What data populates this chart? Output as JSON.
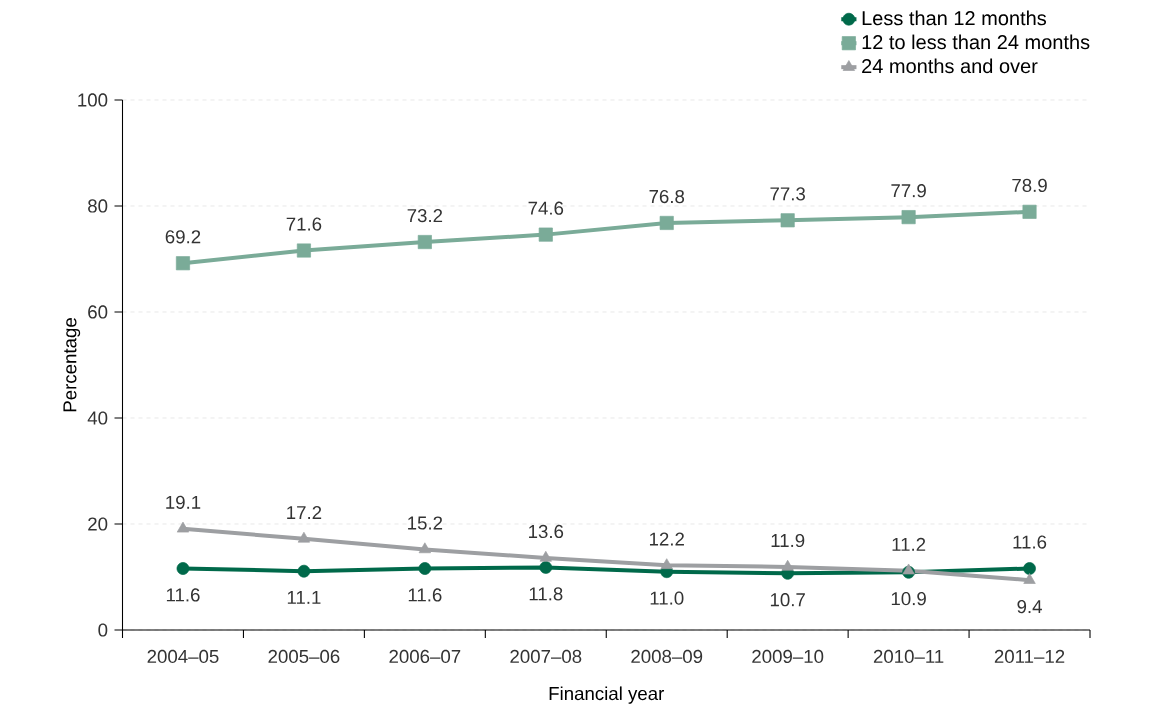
{
  "chart_data": {
    "type": "line",
    "xlabel": "Financial year",
    "ylabel": "Percentage",
    "categories": [
      "2004–05",
      "2005–06",
      "2006–07",
      "2007–08",
      "2008–09",
      "2009–10",
      "2010–11",
      "2011–12"
    ],
    "series": [
      {
        "name": "Less than 12 months",
        "color": "#00694a",
        "marker": "circle",
        "values": [
          11.6,
          11.1,
          11.6,
          11.8,
          11.0,
          10.7,
          10.9,
          11.6
        ],
        "value_labels": [
          "11.6",
          "11.1",
          "11.6",
          "11.8",
          "11.0",
          "10.7",
          "10.9",
          "11.6"
        ]
      },
      {
        "name": "12 to less than 24 months",
        "color": "#7aab98",
        "marker": "square",
        "values": [
          69.2,
          71.6,
          73.2,
          74.6,
          76.8,
          77.3,
          77.9,
          78.9
        ],
        "value_labels": [
          "69.2",
          "71.6",
          "73.2",
          "74.6",
          "76.8",
          "77.3",
          "77.9",
          "78.9"
        ]
      },
      {
        "name": "24 months and over",
        "color": "#9d9fa2",
        "marker": "triangle",
        "values": [
          19.1,
          17.2,
          15.2,
          13.6,
          12.2,
          11.9,
          11.2,
          9.4
        ],
        "value_labels": [
          "19.1",
          "17.2",
          "15.2",
          "13.6",
          "12.2",
          "11.9",
          "11.2",
          "9.4"
        ]
      }
    ],
    "ylim": [
      0,
      100
    ],
    "yticks": [
      0,
      20,
      40,
      60,
      80,
      100
    ],
    "grid": "y",
    "legend": "top right",
    "line_style": "solid"
  }
}
